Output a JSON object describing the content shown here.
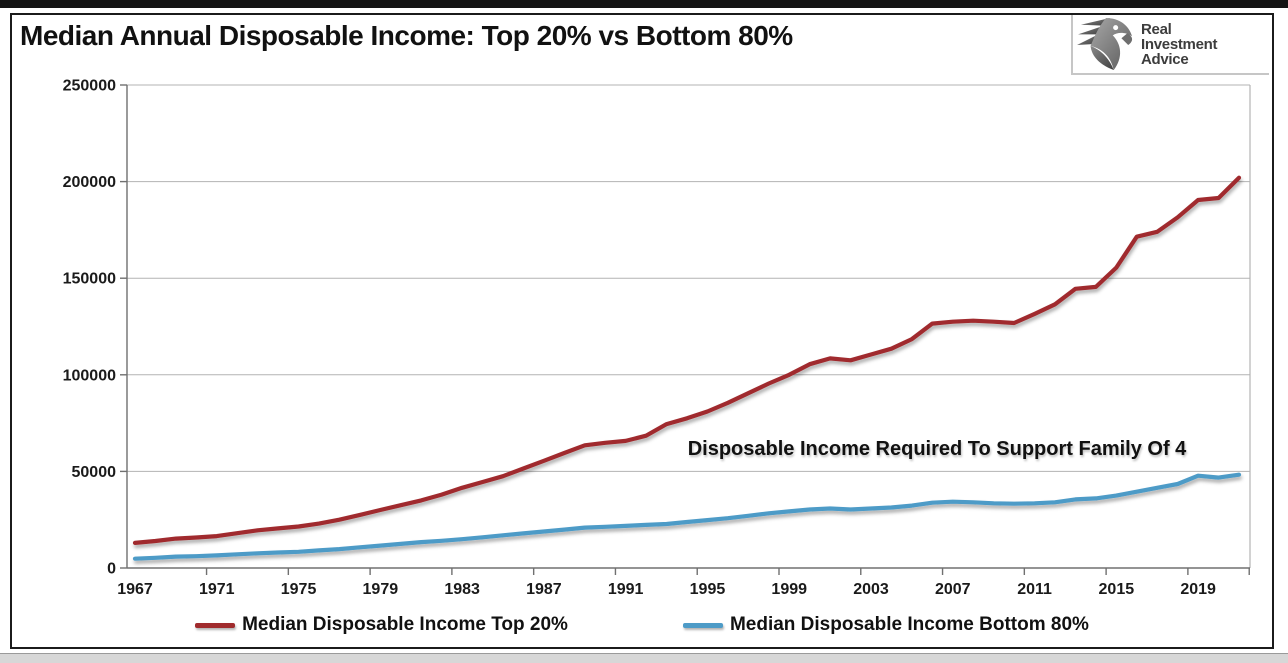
{
  "logo": {
    "line1": "Real",
    "line2": "Investment",
    "line3": "Advice"
  },
  "chart_data": {
    "type": "line",
    "title": "Median Annual Disposable Income: Top 20% vs Bottom 80%",
    "xlabel": "",
    "ylabel": "",
    "ylim": [
      0,
      250000
    ],
    "yticks": [
      0,
      50000,
      100000,
      150000,
      200000,
      250000
    ],
    "xticks": [
      1967,
      1971,
      1975,
      1979,
      1983,
      1987,
      1991,
      1995,
      1999,
      2003,
      2007,
      2011,
      2015,
      2019
    ],
    "grid": "horizontal",
    "legend_position": "bottom",
    "x": [
      1967,
      1968,
      1969,
      1970,
      1971,
      1972,
      1973,
      1974,
      1975,
      1976,
      1977,
      1978,
      1979,
      1980,
      1981,
      1982,
      1983,
      1984,
      1985,
      1986,
      1987,
      1988,
      1989,
      1990,
      1991,
      1992,
      1993,
      1994,
      1995,
      1996,
      1997,
      1998,
      1999,
      2000,
      2001,
      2002,
      2003,
      2004,
      2005,
      2006,
      2007,
      2008,
      2009,
      2010,
      2011,
      2012,
      2013,
      2014,
      2015,
      2016,
      2017,
      2018,
      2019,
      2020,
      2021
    ],
    "series": [
      {
        "name": "Median Disposable Income Top 20%",
        "color": "#A02B2D",
        "values": [
          13000,
          14000,
          15200,
          15800,
          16500,
          18000,
          19500,
          20500,
          21500,
          23000,
          25000,
          27500,
          30000,
          32500,
          35000,
          38000,
          41500,
          44500,
          47500,
          51500,
          55500,
          59500,
          63500,
          64800,
          65800,
          68500,
          74500,
          77500,
          81000,
          85500,
          90500,
          95500,
          100000,
          105500,
          108500,
          107500,
          110500,
          113500,
          118500,
          126500,
          127500,
          128000,
          127500,
          126800,
          131500,
          136500,
          144500,
          145500,
          155500,
          171500,
          174000,
          181500,
          190500,
          191500,
          202000
        ]
      },
      {
        "name": "Median Disposable Income Bottom 80%",
        "color": "#4D9BC7",
        "values": [
          4800,
          5300,
          5900,
          6100,
          6500,
          7100,
          7600,
          8000,
          8400,
          9100,
          9800,
          10700,
          11600,
          12500,
          13400,
          14100,
          14900,
          15900,
          16900,
          17900,
          18900,
          19900,
          20900,
          21300,
          21800,
          22300,
          22800,
          23800,
          24800,
          25800,
          27000,
          28300,
          29300,
          30300,
          30800,
          30300,
          30800,
          31300,
          32300,
          33800,
          34300,
          34000,
          33500,
          33300,
          33500,
          34000,
          35500,
          36000,
          37500,
          39500,
          41500,
          43500,
          47800,
          46800,
          48300
        ]
      }
    ],
    "reference_line": {
      "value": 50000,
      "label": "Disposable Income Required To Support Family Of 4",
      "color": "#111111",
      "style": "dashed"
    }
  }
}
